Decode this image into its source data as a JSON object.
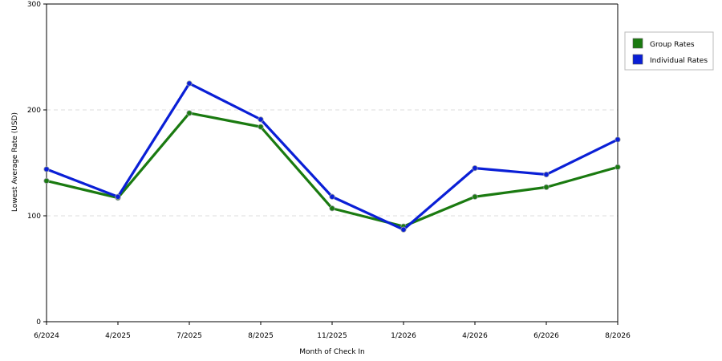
{
  "chart_data": {
    "type": "line",
    "title": "",
    "xlabel": "Month of Check In",
    "ylabel": "Lowest Average Rate (USD)",
    "categories": [
      "6/2024",
      "4/2025",
      "7/2025",
      "8/2025",
      "11/2025",
      "1/2026",
      "4/2026",
      "6/2026",
      "8/2026"
    ],
    "ylim": [
      0,
      300
    ],
    "yticks": [
      0,
      100,
      200,
      300
    ],
    "grid": "horizontal dashed at y ticks",
    "legend_position": "right",
    "series": [
      {
        "name": "Group Rates",
        "color": "#1a7a10",
        "values": [
          133,
          117,
          197,
          184,
          107,
          90,
          118,
          127,
          146
        ]
      },
      {
        "name": "Individual Rates",
        "color": "#0a1fd6",
        "values": [
          144,
          118,
          225,
          191,
          118,
          87,
          145,
          139,
          172
        ]
      }
    ]
  }
}
